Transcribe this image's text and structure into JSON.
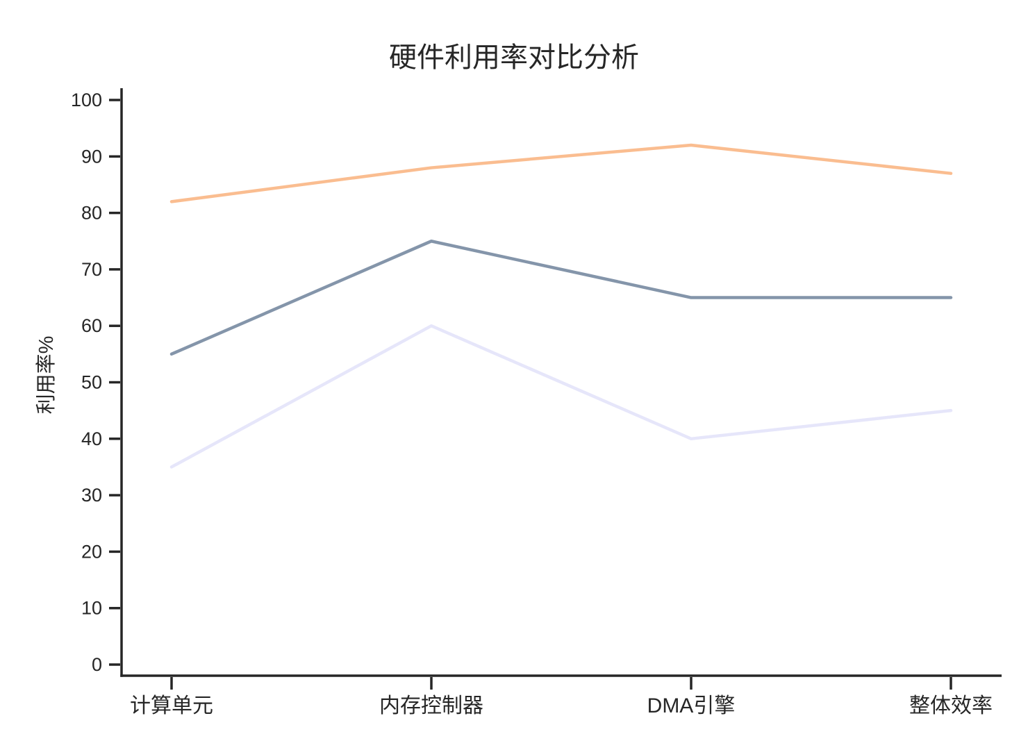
{
  "chart_data": {
    "type": "line",
    "title": "硬件利用率对比分析",
    "xlabel": "",
    "ylabel": "利用率%",
    "categories": [
      "计算单元",
      "内存控制器",
      "DMA引擎",
      "整体效率"
    ],
    "series": [
      {
        "name": "peach-line",
        "color": "#FABD90",
        "values": [
          82,
          88,
          92,
          87
        ]
      },
      {
        "name": "slate-line",
        "color": "#8495AA",
        "values": [
          55,
          75,
          65,
          65
        ]
      },
      {
        "name": "lavender-line",
        "color": "#E6E6FA",
        "values": [
          35,
          60,
          40,
          45
        ]
      }
    ],
    "ylim": [
      0,
      100
    ],
    "yticks": [
      0,
      10,
      20,
      30,
      40,
      50,
      60,
      70,
      80,
      90,
      100
    ],
    "grid": false,
    "legend": "none",
    "axis_color": "#262626",
    "background_color": "#FFFFFF"
  }
}
